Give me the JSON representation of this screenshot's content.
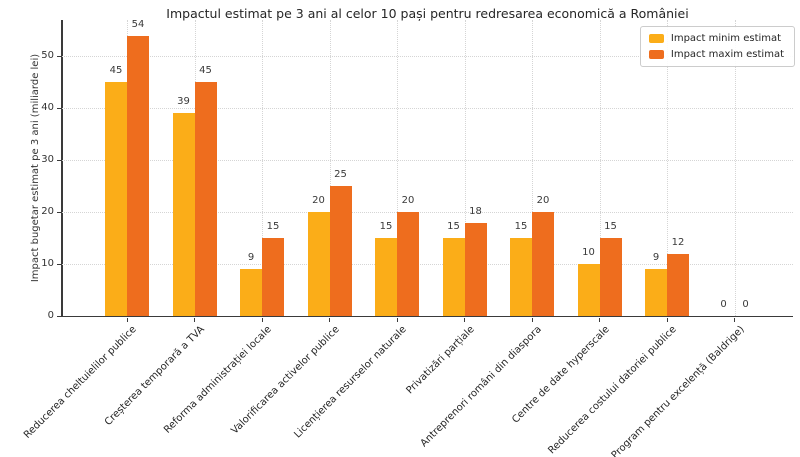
{
  "chart_data": {
    "type": "bar",
    "title": "Impactul estimat pe 3 ani al celor 10 pași pentru redresarea economică a României",
    "xlabel": "",
    "ylabel": "Impact bugetar estimat pe 3 ani (miliarde lei)",
    "categories": [
      "Reducerea cheltuielilor publice",
      "Creșterea temporară a TVA",
      "Reforma administrației locale",
      "Valorificarea activelor publice",
      "Licențierea resurselor naturale",
      "Privatizări parțiale",
      "Antreprenori români din diaspora",
      "Centre de date hyperscale",
      "Reducerea costului datoriei publice",
      "Program pentru excelență (Baldrige)"
    ],
    "series": [
      {
        "name": "Impact minim estimat",
        "color": "#FBAD18",
        "values": [
          45,
          39,
          9,
          20,
          15,
          15,
          15,
          10,
          9,
          0
        ]
      },
      {
        "name": "Impact maxim estimat",
        "color": "#EE6D1E",
        "values": [
          54,
          45,
          15,
          25,
          20,
          18,
          20,
          15,
          12,
          0
        ]
      }
    ],
    "ylim": [
      0,
      57
    ],
    "yticks": [
      0,
      10,
      20,
      30,
      40,
      50
    ],
    "grid": true,
    "grid_style": "dotted",
    "legend_position": "upper right",
    "bar_value_labels_shown": true
  }
}
